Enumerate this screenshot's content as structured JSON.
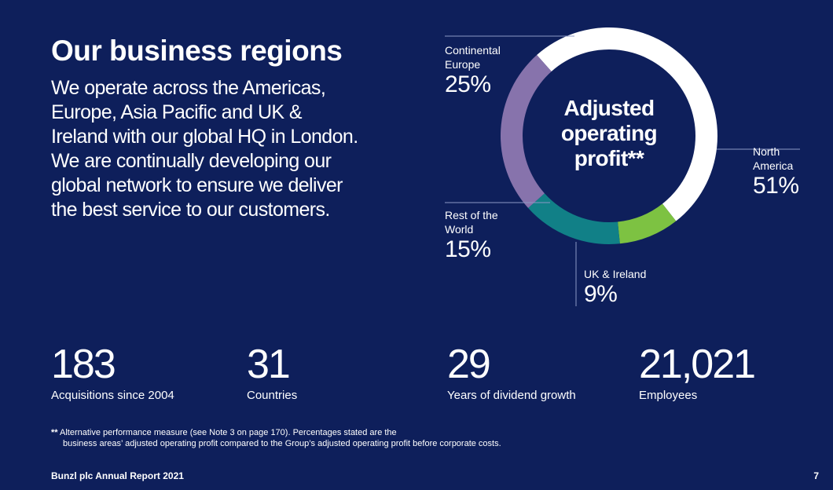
{
  "page": {
    "title": "Our business regions",
    "intro": "We operate across the Americas, Europe, Asia Pacific and UK & Ireland with our global HQ in London. We are continually developing our global network to ensure we deliver the best service to our customers."
  },
  "chart_data": {
    "type": "pie",
    "variant": "donut",
    "title": "Adjusted operating profit**",
    "center_label": "Adjusted operating profit**",
    "slices": [
      {
        "name": "North America",
        "value": 51,
        "label": "North America",
        "pct_text": "51%",
        "color": "#ffffff"
      },
      {
        "name": "UK & Ireland",
        "value": 9,
        "label": "UK & Ireland",
        "pct_text": "9%",
        "color": "#7dc242"
      },
      {
        "name": "Rest of the World",
        "value": 15,
        "label": "Rest of the World",
        "pct_text": "15%",
        "color": "#118087"
      },
      {
        "name": "Continental Europe",
        "value": 25,
        "label": "Continental Europe",
        "pct_text": "25%",
        "color": "#8773ac"
      }
    ]
  },
  "stats": [
    {
      "value": "183",
      "label": "Acquisitions since 2004"
    },
    {
      "value": "31",
      "label": "Countries"
    },
    {
      "value": "29",
      "label": "Years of dividend growth"
    },
    {
      "value": "21,021",
      "label": "Employees"
    }
  ],
  "footnote": {
    "marker": "**",
    "line1": "Alternative performance measure (see Note 3 on page 170). Percentages stated are the",
    "line2": "business areas’ adjusted operating profit compared to the Group’s adjusted operating profit before corporate costs."
  },
  "footer": {
    "left": "Bunzl plc Annual Report 2021",
    "page_number": "7"
  },
  "colors": {
    "background": "#0e1f5b",
    "text": "#ffffff",
    "leader_line": "#8c98c4"
  }
}
